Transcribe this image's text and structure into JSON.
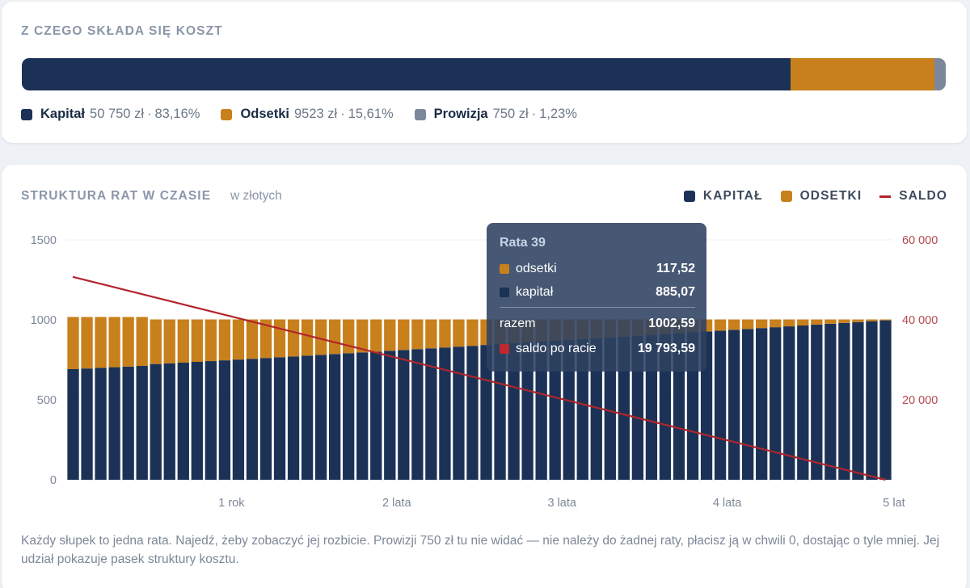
{
  "cost_structure": {
    "title": "Z CZEGO SKŁADA SIĘ KOSZT",
    "segments": [
      {
        "label": "Kapitał",
        "amount": "50 750 zł",
        "share_text": "83,16%",
        "share": 83.16,
        "color": "#1b3256"
      },
      {
        "label": "Odsetki",
        "amount": "9523 zł",
        "share_text": "15,61%",
        "share": 15.61,
        "color": "#c8801c"
      },
      {
        "label": "Prowizja",
        "amount": "750 zł",
        "share_text": "1,23%",
        "share": 1.23,
        "color": "#7b879a"
      }
    ],
    "separator": "·"
  },
  "chart": {
    "title": "STRUKTURA RAT W CZASIE",
    "subtitle": "w złotych",
    "legend": [
      {
        "label": "KAPITAŁ",
        "color": "#1b3256",
        "shape": "square"
      },
      {
        "label": "ODSETKI",
        "color": "#c8801c",
        "shape": "square"
      },
      {
        "label": "SALDO",
        "color": "#b0252b",
        "shape": "line"
      }
    ],
    "note": "Każdy słupek to jedna rata. Najedź, żeby zobaczyć jej rozbicie. Prowizji 750 zł tu nie widać — nie należy do żadnej raty, płacisz ją w chwili 0, dostając o tyle mniej. Jej udział pokazuje pasek struktury kosztu.",
    "tooltip": {
      "title": "Rata 39",
      "rows": [
        {
          "label": "odsetki",
          "value": "117,52",
          "color": "#c8801c"
        },
        {
          "label": "kapitał",
          "value": "885,07",
          "color": "#1b3256"
        }
      ],
      "total": {
        "label": "razem",
        "value": "1002,59"
      },
      "balance": {
        "label": "saldo po racie",
        "value": "19 793,59",
        "color": "#c0282f"
      }
    }
  },
  "chart_data": {
    "type": "bar",
    "stacked": true,
    "installments": 60,
    "payment_by_installment": [
      {
        "from": 1,
        "to": 6,
        "total": 1018
      },
      {
        "from": 7,
        "to": 60,
        "total": 1002.59
      }
    ],
    "series": [
      {
        "name": "Kapitał",
        "color": "#1b3256",
        "first_value": 692,
        "last_value": 997
      },
      {
        "name": "Odsetki",
        "color": "#c8801c",
        "first_value": 326,
        "last_value": 5
      }
    ],
    "balance_line": {
      "name": "Saldo",
      "color": "#b0252b",
      "axis": "right",
      "start": 50750,
      "end": 0
    },
    "y_left": {
      "min": 0,
      "max": 1500,
      "ticks": [
        0,
        500,
        1000,
        1500
      ]
    },
    "y_right": {
      "min": 0,
      "max": 60000,
      "ticks": [
        "20 000",
        "40 000",
        "60 000"
      ],
      "tick_values": [
        20000,
        40000,
        60000
      ],
      "color": "#b0252b"
    },
    "x_ticks": [
      {
        "installment": 12,
        "label": "1 rok"
      },
      {
        "installment": 24,
        "label": "2 lata"
      },
      {
        "installment": 36,
        "label": "3 lata"
      },
      {
        "installment": 48,
        "label": "4 lata"
      },
      {
        "installment": 60,
        "label": "5 lat"
      }
    ],
    "y_left_tick_labels": [
      "0",
      "500",
      "1000",
      "1500"
    ],
    "highlighted_installment": 39,
    "grid": true
  }
}
